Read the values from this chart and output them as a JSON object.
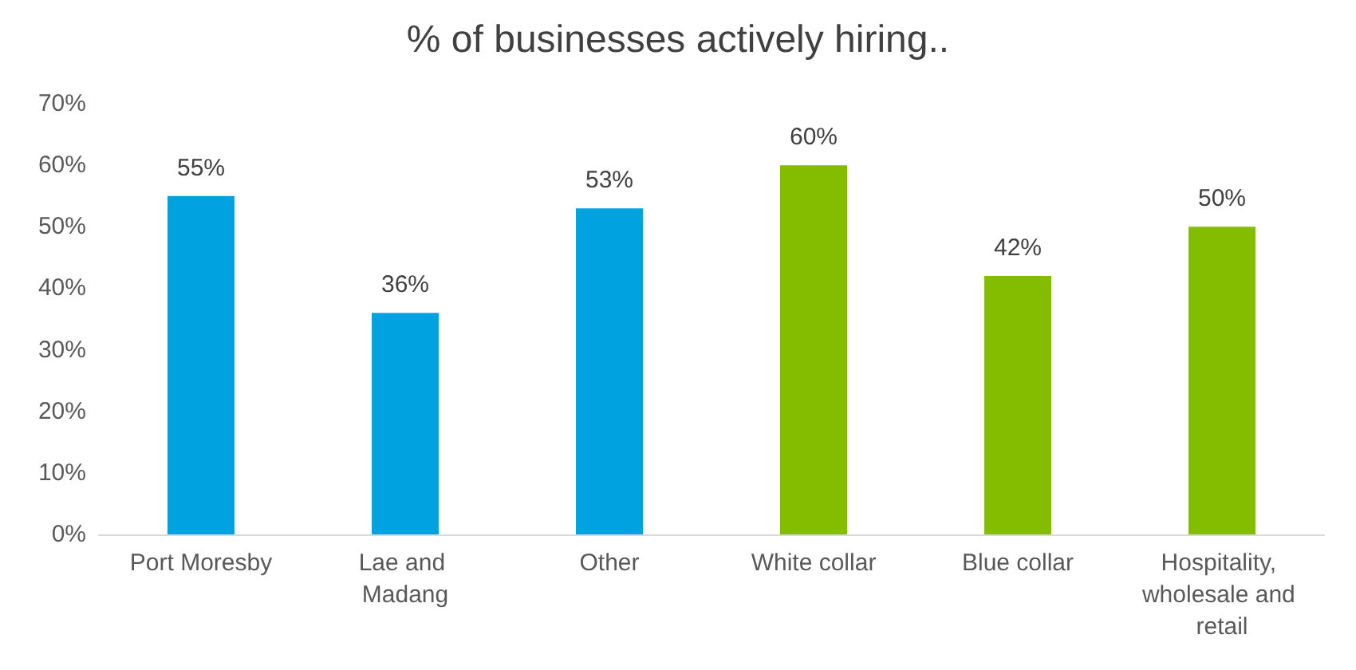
{
  "chart_data": {
    "type": "bar",
    "title": "% of businesses actively hiring..",
    "categories": [
      "Port Moresby",
      "Lae and Madang",
      "Other",
      "White collar",
      "Blue collar",
      "Hospitality, wholesale and retail"
    ],
    "values": [
      55,
      36,
      53,
      60,
      42,
      50
    ],
    "colors": [
      "#00a3e0",
      "#00a3e0",
      "#00a3e0",
      "#84bd00",
      "#84bd00",
      "#84bd00"
    ],
    "value_labels": [
      "55%",
      "36%",
      "53%",
      "60%",
      "42%",
      "50%"
    ],
    "ylim": [
      0,
      70
    ],
    "yticks": [
      {
        "value": 0,
        "label": "0%"
      },
      {
        "value": 10,
        "label": "10%"
      },
      {
        "value": 20,
        "label": "20%"
      },
      {
        "value": 30,
        "label": "30%"
      },
      {
        "value": 40,
        "label": "40%"
      },
      {
        "value": 50,
        "label": "50%"
      },
      {
        "value": 60,
        "label": "60%"
      },
      {
        "value": 70,
        "label": "70%"
      }
    ],
    "grid": false
  }
}
